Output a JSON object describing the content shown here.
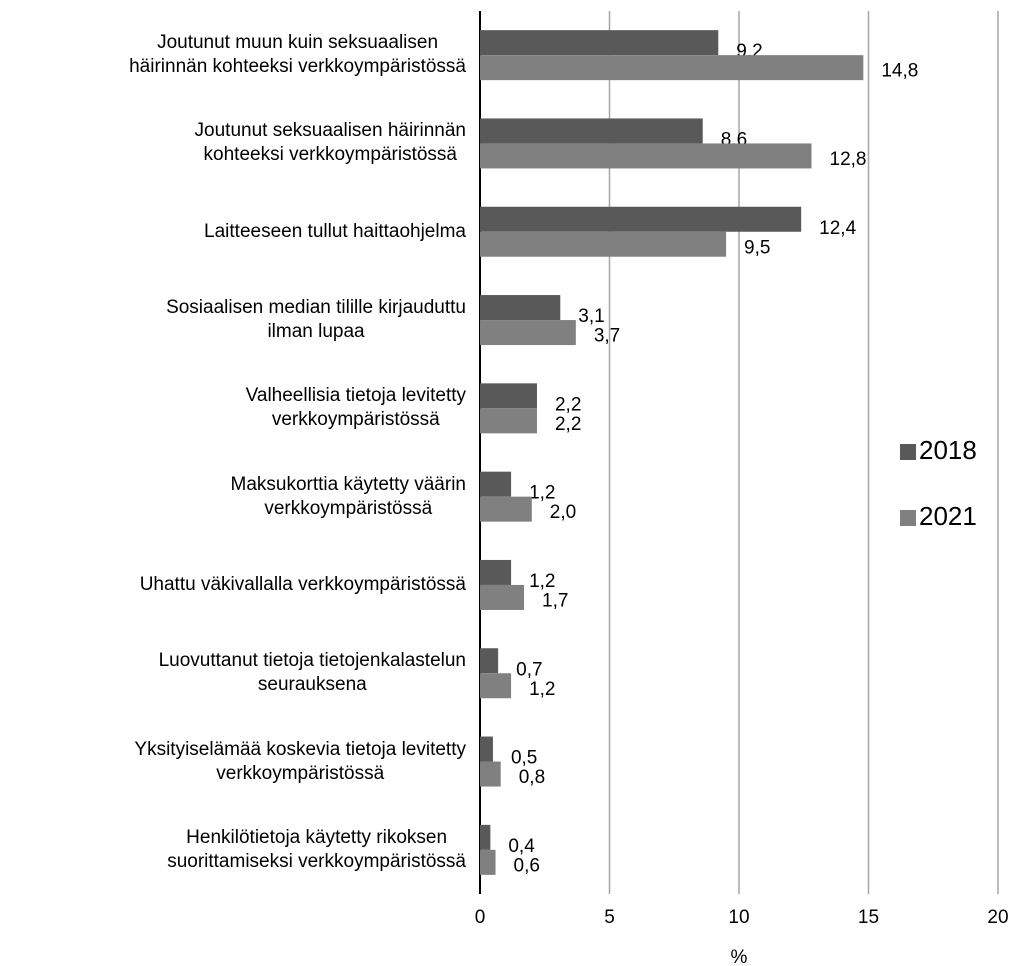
{
  "chart_data": {
    "type": "bar",
    "orientation": "horizontal",
    "x_label": "%",
    "categories": [
      "Joutunut muun kuin seksuaalisen\nhäirinnän kohteeksi verkkoympäristössä",
      "Joutunut seksuaalisen häirinnän\nkohteeksi verkkoympäristössä",
      "Laitteeseen tullut haittaohjelma",
      "Sosiaalisen median tilille kirjauduttu\nilman lupaa",
      "Valheellisia tietoja levitetty\nverkkoympäristössä",
      "Maksukorttia käytetty väärin\nverkkoympäristössä",
      "Uhattu väkivallalla verkkoympäristössä",
      "Luovuttanut tietoja tietojenkalastelun\nseurauksena",
      "Yksityiselämää koskevia tietoja levitetty\nverkkoympäristössä",
      "Henkilötietoja käytetty rikoksen\nsuorittamiseksi verkkoympäristössä"
    ],
    "series": [
      {
        "name": "2018",
        "color": "#595959",
        "values": [
          9.2,
          8.6,
          12.4,
          3.1,
          2.2,
          1.2,
          1.2,
          0.7,
          0.5,
          0.4
        ],
        "value_labels": [
          "9,2",
          "8,6",
          "12,4",
          "3,1",
          "2,2",
          "1,2",
          "1,2",
          "0,7",
          "0,5",
          "0,4"
        ]
      },
      {
        "name": "2021",
        "color": "#808080",
        "values": [
          14.8,
          12.8,
          9.5,
          3.7,
          2.2,
          2.0,
          1.7,
          1.2,
          0.8,
          0.6
        ],
        "value_labels": [
          "14,8",
          "12,8",
          "9,5",
          "3,7",
          "2,2",
          "2,0",
          "1,7",
          "1,2",
          "0,8",
          "0,6"
        ]
      }
    ],
    "xlim": [
      0,
      20
    ],
    "xticks": [
      0,
      5,
      10,
      15,
      20
    ],
    "grid": true,
    "legend": "right"
  }
}
